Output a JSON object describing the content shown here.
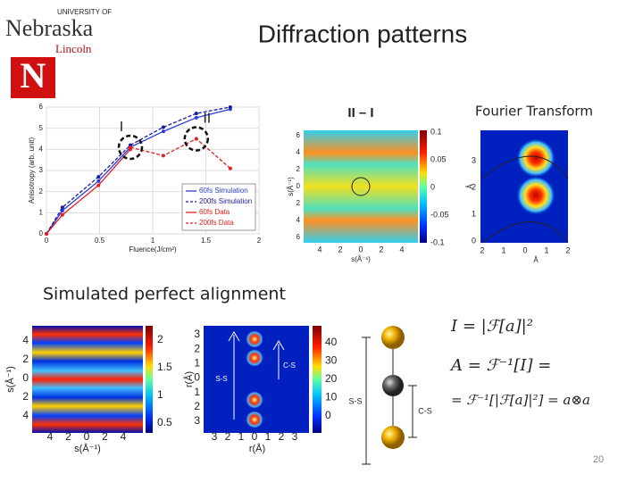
{
  "header": {
    "logo_top": "UNIVERSITY OF",
    "logo_main": "Nebraska",
    "logo_sub": "Lincoln",
    "title": "Diffraction patterns"
  },
  "chart_data": [
    {
      "type": "line",
      "xlabel": "Fluence(J/cm²)",
      "ylabel": "Anisotropy (arb. unit)",
      "xlim": [
        0,
        2
      ],
      "xticks": [
        0,
        0.5,
        1,
        1.5,
        2
      ],
      "ylim": [
        0,
        6
      ],
      "yticks": [
        0,
        1,
        2,
        3,
        4,
        5,
        6
      ],
      "grid": true,
      "legend": "lower right",
      "annotations": [
        "I",
        "II"
      ],
      "series": [
        {
          "name": "60fs Simulation",
          "color": "#2b3fd6",
          "style": "solid",
          "x": [
            0,
            0.15,
            0.49,
            0.79,
            1.1,
            1.41,
            1.73
          ],
          "values": [
            0,
            1.1,
            2.5,
            4.1,
            4.85,
            5.5,
            5.9
          ]
        },
        {
          "name": "200fs Simulation",
          "color": "#1a1aa0",
          "style": "dashed",
          "x": [
            0,
            0.15,
            0.49,
            0.79,
            1.1,
            1.41,
            1.73
          ],
          "values": [
            0,
            1.25,
            2.7,
            4.2,
            5.05,
            5.7,
            6
          ]
        },
        {
          "name": "60fs Data",
          "color": "#e02020",
          "style": "solid",
          "x": [
            0,
            0.15,
            0.49,
            0.79
          ],
          "values": [
            0,
            0.9,
            2.3,
            4
          ]
        },
        {
          "name": "200fs Data",
          "color": "#e02020",
          "style": "dashed",
          "x": [
            0.79,
            1.1,
            1.41,
            1.73
          ],
          "values": [
            4.1,
            3.7,
            4.5,
            3.1
          ]
        }
      ]
    }
  ],
  "panels": {
    "diff": {
      "title": "II – I",
      "colorbar_ticks": [
        "0.1",
        "0.05",
        "0",
        "-0.05",
        "-0.1"
      ],
      "yticks": [
        "6",
        "4",
        "2",
        "0",
        "2",
        "4",
        "6"
      ],
      "xticks": [
        "4",
        "2",
        "0",
        "2",
        "4"
      ],
      "xlabel": "s(Å⁻¹)",
      "ylabel": "s(Å⁻¹)"
    },
    "ft": {
      "title": "Fourier Transform",
      "yticks": [
        "3",
        "2",
        "1",
        "0"
      ],
      "xticks": [
        "2",
        "1",
        "0",
        "1",
        "2"
      ],
      "xlabel": "Å",
      "ylabel": "Å"
    },
    "section": "Simulated perfect alignment",
    "sim": {
      "yticks": [
        "4",
        "2",
        "0",
        "2",
        "4"
      ],
      "xticks": [
        "4",
        "2",
        "0",
        "2",
        "4"
      ],
      "xlabel": "s(Å⁻¹)",
      "ylabel": "s(Å⁻¹)",
      "colorbar_ticks": [
        "2",
        "1.5",
        "1",
        "0.5"
      ]
    },
    "real": {
      "yticks": [
        "3",
        "2",
        "1",
        "0",
        "1",
        "2",
        "3"
      ],
      "xticks": [
        "3",
        "2",
        "1",
        "0",
        "1",
        "2",
        "3"
      ],
      "xlabel": "r(Å)",
      "ylabel": "r(Å)",
      "labels": [
        "S-S",
        "C-S"
      ],
      "colorbar_ticks": [
        "40",
        "30",
        "20",
        "10",
        "0"
      ]
    },
    "molecule": {
      "labels": [
        "S-S",
        "C-S"
      ]
    },
    "equations": [
      "I = |ℱ[a]|²",
      "A = ℱ⁻¹[I] =",
      "= ℱ⁻¹[|ℱ[a]|²] = a⊗a"
    ]
  },
  "page_number": "20"
}
